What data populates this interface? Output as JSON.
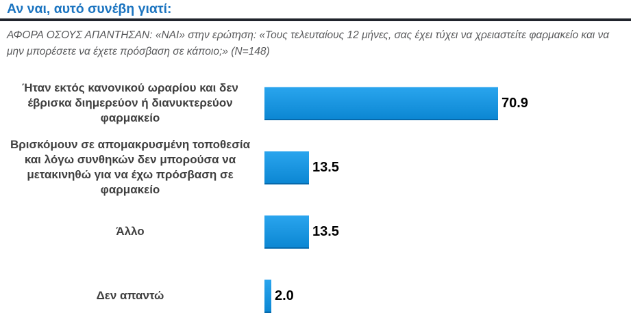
{
  "header": {
    "title": "Αν ναι, αυτό συνέβη γιατί:",
    "subtitle": "ΑΦΟΡΑ ΟΣΟΥΣ ΑΠΑΝΤΗΣΑΝ: «ΝΑΙ» στην ερώτηση: «Τους τελευταίους 12 μήνες, σας έχει τύχει να χρειαστείτε φαρμακείο και να μην μπορέσετε να έχετε πρόσβαση σε κάποιο;» (N=148)",
    "sample_size_note": "(N=148)"
  },
  "colors": {
    "title_blue": "#1b74c0",
    "rule_dark": "#20242c",
    "subtitle_gray": "#58595b",
    "label_gray": "#404040",
    "bar_top": "#2aa5ee",
    "bar_bottom": "#0c87d3",
    "bar_edge": "#0669ac",
    "value_black": "#000000"
  },
  "chart_data": {
    "type": "bar",
    "orientation": "horizontal",
    "title": "Αν ναι, αυτό συνέβη γιατί:",
    "categories": [
      "Ήταν εκτός κανονικού ωραρίου και δεν έβρισκα διημερεύον ή διανυκτερεύον φαρμακείο",
      "Βρισκόμουν σε απομακρυσμένη τοποθεσία και λόγω συνθηκών δεν μπορούσα να μετακινηθώ για να έχω πρόσβαση σε φαρμακείο",
      "Άλλο",
      "Δεν απαντώ"
    ],
    "values": [
      70.9,
      13.5,
      13.5,
      2.0
    ],
    "value_labels": [
      "70.9",
      "13.5",
      "13.5",
      "2.0"
    ],
    "xlim": [
      0,
      100
    ],
    "grid": false,
    "legend": false,
    "data_labels_position": "outside-end"
  }
}
